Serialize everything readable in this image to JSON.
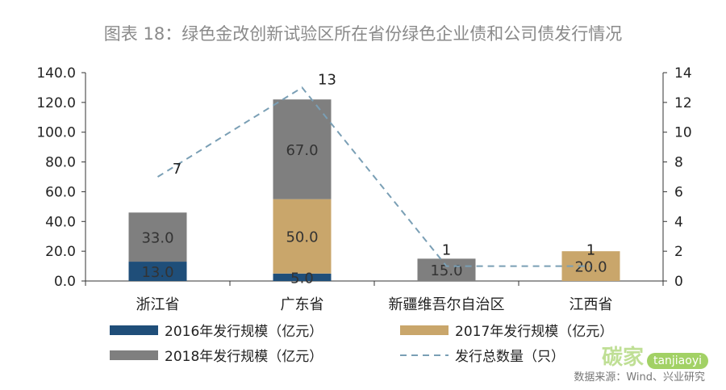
{
  "title": "图表 18：绿色金改创新试验区所在省份绿色企业债和公司债发行情况",
  "source": "数据来源：Wind、兴业研究",
  "watermark": {
    "brand": "碳家",
    "domain": "tanjiaoyi"
  },
  "chart_data": {
    "type": "bar",
    "stacked": true,
    "categories": [
      "浙江省",
      "广东省",
      "新疆维吾尔自治区",
      "江西省"
    ],
    "series": [
      {
        "name": "2016年发行规模（亿元）",
        "values": [
          13.0,
          5.0,
          null,
          null
        ],
        "color": "#1f4e79",
        "labels": [
          "13.0",
          "5.0",
          "",
          ""
        ]
      },
      {
        "name": "2017年发行规模（亿元）",
        "values": [
          null,
          50.0,
          null,
          20.0
        ],
        "color": "#c9a66b",
        "labels": [
          "",
          "50.0",
          "",
          "20.0"
        ]
      },
      {
        "name": "2018年发行规模（亿元）",
        "values": [
          33.0,
          67.0,
          15.0,
          null
        ],
        "color": "#7f7f7f",
        "labels": [
          "33.0",
          "67.0",
          "15.0",
          ""
        ]
      }
    ],
    "line_series": {
      "name": "发行总数量（只）",
      "values": [
        7,
        13,
        1,
        1
      ],
      "color": "#7a9fb5",
      "style": "dashed",
      "axis": "right"
    },
    "y_left": {
      "min": 0,
      "max": 140,
      "ticks": [
        "0.0",
        "20.0",
        "40.0",
        "60.0",
        "80.0",
        "100.0",
        "120.0",
        "140.0"
      ]
    },
    "y_right": {
      "min": 0,
      "max": 14,
      "ticks": [
        "0",
        "2",
        "4",
        "6",
        "8",
        "10",
        "12",
        "14"
      ]
    },
    "grid": false,
    "legend_position": "bottom"
  }
}
